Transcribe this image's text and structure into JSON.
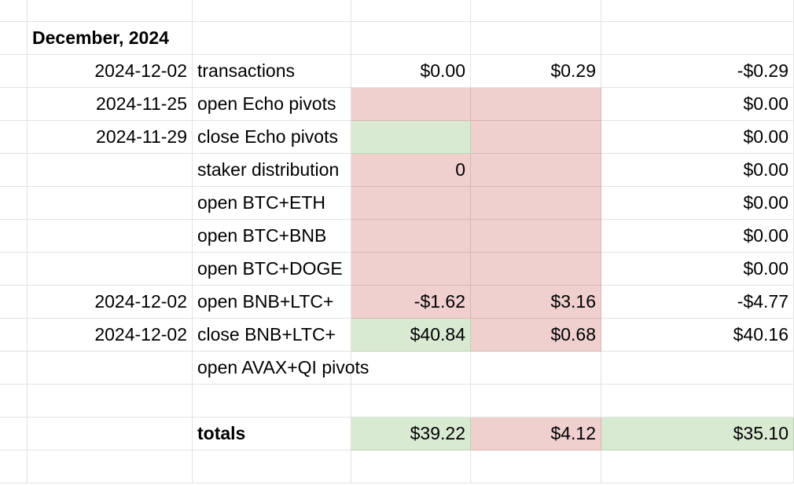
{
  "header": {
    "title": "December, 2024"
  },
  "rows": [
    {
      "date": "2024-12-02",
      "label": "transactions",
      "a": "$0.00",
      "b": "$0.29",
      "c": "-$0.29"
    },
    {
      "date": "2024-11-25",
      "label": "open Echo pivots",
      "a": "",
      "b": "",
      "c": "$0.00"
    },
    {
      "date": "2024-11-29",
      "label": "close Echo pivots",
      "a": "",
      "b": "",
      "c": "$0.00"
    },
    {
      "date": "",
      "label": "staker distribution",
      "a": "0",
      "b": "",
      "c": "$0.00"
    },
    {
      "date": "",
      "label": "open BTC+ETH",
      "a": "",
      "b": "",
      "c": "$0.00"
    },
    {
      "date": "",
      "label": "open BTC+BNB",
      "a": "",
      "b": "",
      "c": "$0.00"
    },
    {
      "date": "",
      "label": "open BTC+DOGE",
      "a": "",
      "b": "",
      "c": "$0.00"
    },
    {
      "date": "2024-12-02",
      "label": "open BNB+LTC+",
      "a": "-$1.62",
      "b": "$3.16",
      "c": "-$4.77"
    },
    {
      "date": "2024-12-02",
      "label": "close BNB+LTC+",
      "a": "$40.84",
      "b": "$0.68",
      "c": "$40.16"
    },
    {
      "date": "",
      "label": "open AVAX+QI pivots",
      "a": "",
      "b": "",
      "c": ""
    }
  ],
  "totals": {
    "label": "totals",
    "a": "$39.22",
    "b": "$4.12",
    "c": "$35.10"
  },
  "colors": {
    "pink": "#f0cfcf",
    "green": "#d9ead3",
    "grid": "#e2e2e2"
  }
}
